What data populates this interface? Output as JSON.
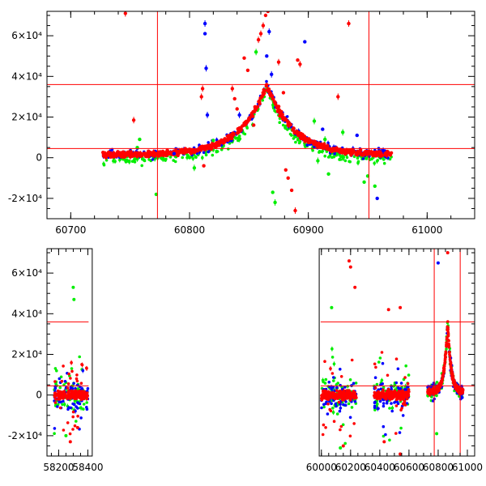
{
  "chart_data": [
    {
      "type": "scatter",
      "name": "zoom-panel",
      "xlim": [
        60680,
        61040
      ],
      "ylim": [
        -30000,
        72000
      ],
      "xticks": [
        {
          "v": 60700,
          "label": "60700"
        },
        {
          "v": 60800,
          "label": "60800"
        },
        {
          "v": 60900,
          "label": "60900"
        },
        {
          "v": 61000,
          "label": "61000"
        }
      ],
      "yticks": [
        {
          "v": -20000,
          "label": "-2×10⁴"
        },
        {
          "v": 0,
          "label": "0"
        },
        {
          "v": 20000,
          "label": "2×10⁴"
        },
        {
          "v": 40000,
          "label": "4×10⁴"
        },
        {
          "v": 60000,
          "label": "6×10⁴"
        }
      ],
      "hlines": [
        4500,
        36000
      ],
      "vlines": [
        60773,
        60951
      ],
      "data_range": [
        60727,
        60970
      ],
      "peak": {
        "x": 60865,
        "y": 36000,
        "baseline": 1500
      },
      "colors": {
        "blue": "#0000ff",
        "green": "#00ee00",
        "red": "#ff0000",
        "guide": "#ff0000"
      },
      "outliers": [
        {
          "x": 60746,
          "y": 71000,
          "c": "red"
        },
        {
          "x": 60753,
          "y": 18500,
          "c": "red"
        },
        {
          "x": 60756,
          "y": 5000,
          "c": "green"
        },
        {
          "x": 60758,
          "y": 9000,
          "c": "green"
        },
        {
          "x": 60772,
          "y": -18000,
          "c": "green"
        },
        {
          "x": 60787,
          "y": 2000,
          "c": "blue"
        },
        {
          "x": 60804,
          "y": -5000,
          "c": "green"
        },
        {
          "x": 60810,
          "y": 30000,
          "c": "red"
        },
        {
          "x": 60811,
          "y": 34000,
          "c": "red"
        },
        {
          "x": 60812,
          "y": -4000,
          "c": "red"
        },
        {
          "x": 60813,
          "y": 66000,
          "c": "blue"
        },
        {
          "x": 60813,
          "y": 61000,
          "c": "blue"
        },
        {
          "x": 60814,
          "y": 44000,
          "c": "blue"
        },
        {
          "x": 60815,
          "y": 21000,
          "c": "blue"
        },
        {
          "x": 60820,
          "y": 8500,
          "c": "green"
        },
        {
          "x": 60836,
          "y": 34000,
          "c": "red"
        },
        {
          "x": 60838,
          "y": 29000,
          "c": "red"
        },
        {
          "x": 60840,
          "y": 24000,
          "c": "red"
        },
        {
          "x": 60842,
          "y": 21000,
          "c": "blue"
        },
        {
          "x": 60846,
          "y": 49000,
          "c": "red"
        },
        {
          "x": 60849,
          "y": 43000,
          "c": "red"
        },
        {
          "x": 60854,
          "y": 16000,
          "c": "red"
        },
        {
          "x": 60856,
          "y": 52000,
          "c": "green"
        },
        {
          "x": 60858,
          "y": 58000,
          "c": "red"
        },
        {
          "x": 60860,
          "y": 61000,
          "c": "red"
        },
        {
          "x": 60862,
          "y": 65000,
          "c": "red"
        },
        {
          "x": 60864,
          "y": 70000,
          "c": "red"
        },
        {
          "x": 60866,
          "y": 72000,
          "c": "red"
        },
        {
          "x": 60865,
          "y": 50000,
          "c": "blue"
        },
        {
          "x": 60867,
          "y": 62000,
          "c": "blue"
        },
        {
          "x": 60869,
          "y": 41000,
          "c": "blue"
        },
        {
          "x": 60870,
          "y": -17000,
          "c": "green"
        },
        {
          "x": 60872,
          "y": -22000,
          "c": "green"
        },
        {
          "x": 60875,
          "y": 47000,
          "c": "red"
        },
        {
          "x": 60879,
          "y": 32000,
          "c": "red"
        },
        {
          "x": 60881,
          "y": -6000,
          "c": "red"
        },
        {
          "x": 60883,
          "y": -10000,
          "c": "red"
        },
        {
          "x": 60886,
          "y": -16000,
          "c": "red"
        },
        {
          "x": 60889,
          "y": -26000,
          "c": "red"
        },
        {
          "x": 60891,
          "y": 48000,
          "c": "red"
        },
        {
          "x": 60893,
          "y": 46000,
          "c": "red"
        },
        {
          "x": 60897,
          "y": 57000,
          "c": "blue"
        },
        {
          "x": 60905,
          "y": 18000,
          "c": "green"
        },
        {
          "x": 60908,
          "y": -1500,
          "c": "green"
        },
        {
          "x": 60912,
          "y": 14000,
          "c": "blue"
        },
        {
          "x": 60914,
          "y": 9000,
          "c": "green"
        },
        {
          "x": 60917,
          "y": -8000,
          "c": "green"
        },
        {
          "x": 60925,
          "y": 30000,
          "c": "red"
        },
        {
          "x": 60929,
          "y": 12500,
          "c": "green"
        },
        {
          "x": 60934,
          "y": 66000,
          "c": "red"
        },
        {
          "x": 60941,
          "y": 11000,
          "c": "blue"
        },
        {
          "x": 60947,
          "y": -12000,
          "c": "green"
        },
        {
          "x": 60950,
          "y": -9000,
          "c": "green"
        },
        {
          "x": 60956,
          "y": -14000,
          "c": "green"
        },
        {
          "x": 60958,
          "y": -20000,
          "c": "blue"
        },
        {
          "x": 60963,
          "y": 3500,
          "c": "blue"
        }
      ]
    },
    {
      "type": "scatter",
      "name": "full-panel",
      "xlim": [
        58120,
        61050
      ],
      "ylim": [
        -30000,
        72000
      ],
      "xticks": [
        {
          "v": 58200,
          "label": "58200"
        },
        {
          "v": 58400,
          "label": "58400"
        },
        {
          "v": 60000,
          "label": "60000"
        },
        {
          "v": 60200,
          "label": "60200"
        },
        {
          "v": 60400,
          "label": "60400"
        },
        {
          "v": 60600,
          "label": "60600"
        },
        {
          "v": 60800,
          "label": "60800"
        },
        {
          "v": 61000,
          "label": "61000"
        }
      ],
      "yticks": [
        {
          "v": -20000,
          "label": "-2×10⁴"
        },
        {
          "v": 0,
          "label": "0"
        },
        {
          "v": 20000,
          "label": "2×10⁴"
        },
        {
          "v": 40000,
          "label": "4×10⁴"
        },
        {
          "v": 60000,
          "label": "6×10⁴"
        }
      ],
      "hlines": [
        4500,
        36000
      ],
      "vlines": [
        60773,
        60951
      ],
      "seasons": [
        [
          58170,
          58400
        ],
        [
          60000,
          60240
        ],
        [
          60360,
          60600
        ],
        [
          60727,
          60970
        ]
      ],
      "colors": {
        "blue": "#0000ff",
        "green": "#00ee00",
        "red": "#ff0000",
        "guide": "#ff0000"
      },
      "outliers": [
        {
          "x": 58300,
          "y": 53000,
          "c": "green"
        },
        {
          "x": 58305,
          "y": 47000,
          "c": "green"
        },
        {
          "x": 58280,
          "y": -23000,
          "c": "red"
        },
        {
          "x": 58250,
          "y": -20000,
          "c": "green"
        },
        {
          "x": 58330,
          "y": -16000,
          "c": "red"
        },
        {
          "x": 60070,
          "y": 43000,
          "c": "green"
        },
        {
          "x": 60130,
          "y": -26000,
          "c": "green"
        },
        {
          "x": 60190,
          "y": 66000,
          "c": "red"
        },
        {
          "x": 60200,
          "y": 63000,
          "c": "red"
        },
        {
          "x": 60230,
          "y": 53000,
          "c": "red"
        },
        {
          "x": 60150,
          "y": -25000,
          "c": "red"
        },
        {
          "x": 60460,
          "y": 42000,
          "c": "red"
        },
        {
          "x": 60540,
          "y": 43000,
          "c": "red"
        },
        {
          "x": 60430,
          "y": -23000,
          "c": "red"
        },
        {
          "x": 60540,
          "y": -29000,
          "c": "red"
        },
        {
          "x": 60865,
          "y": 70000,
          "c": "red"
        },
        {
          "x": 60800,
          "y": 65000,
          "c": "blue"
        },
        {
          "x": 60790,
          "y": -19000,
          "c": "green"
        }
      ]
    }
  ]
}
